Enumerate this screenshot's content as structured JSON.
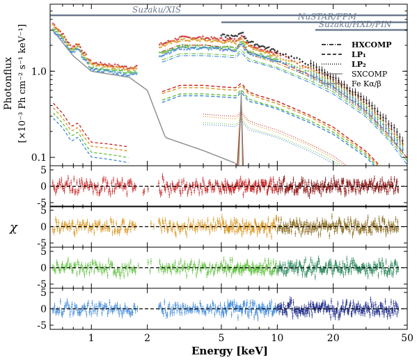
{
  "chart_data": {
    "type": "line",
    "xlabel": "Energy [keV]",
    "xscale": "log",
    "xlim": [
      0.6,
      50
    ],
    "xticks": [
      "1",
      "2",
      "5",
      "10",
      "20",
      "50"
    ],
    "top_panel": {
      "ylabel_line1": "Photonflux",
      "ylabel_line2": "[×10⁻³ Ph cm⁻² s⁻¹ keV⁻¹]",
      "yscale": "log",
      "ylim": [
        0.08,
        6.0
      ],
      "yticks": [
        "0.1",
        "1.0"
      ],
      "instruments": [
        {
          "label": "Suzaku/XIS",
          "emin": 0.6,
          "emax": 10
        },
        {
          "label": "NuSTAR/FPM",
          "emin": 5,
          "emax": 50
        },
        {
          "label": "Suzaku/HXD/PIN",
          "emin": 16,
          "emax": 50
        }
      ],
      "legend": {
        "placement": "right",
        "entries": [
          "HXCOMP",
          "LP₁",
          "LP₂",
          "SXCOMP",
          "Fe Kα/β"
        ]
      },
      "series": [
        {
          "name": "red",
          "color": "#c81e1e",
          "points": [
            [
              0.62,
              3.6
            ],
            [
              0.7,
              2.7
            ],
            [
              0.78,
              1.9
            ],
            [
              0.85,
              2.1
            ],
            [
              0.9,
              1.7
            ],
            [
              1.0,
              1.25
            ],
            [
              1.2,
              1.2
            ],
            [
              1.4,
              1.15
            ],
            [
              1.6,
              1.1
            ],
            [
              2.0,
              1.2
            ],
            [
              2.3,
              2.0
            ],
            [
              3.0,
              2.45
            ],
            [
              4.0,
              2.45
            ],
            [
              5.0,
              2.35
            ],
            [
              6.0,
              2.3
            ],
            [
              6.4,
              2.6
            ],
            [
              7.0,
              2.05
            ],
            [
              8.0,
              1.85
            ],
            [
              10,
              1.6
            ],
            [
              15,
              1.1
            ],
            [
              20,
              0.8
            ],
            [
              30,
              0.42
            ],
            [
              40,
              0.22
            ],
            [
              50,
              0.12
            ]
          ]
        },
        {
          "name": "orange",
          "color": "#d9941c",
          "points": [
            [
              0.62,
              3.4
            ],
            [
              0.7,
              2.55
            ],
            [
              0.78,
              1.8
            ],
            [
              0.85,
              2.0
            ],
            [
              0.9,
              1.6
            ],
            [
              1.0,
              1.2
            ],
            [
              1.2,
              1.15
            ],
            [
              1.4,
              1.1
            ],
            [
              1.6,
              1.05
            ],
            [
              2.0,
              1.15
            ],
            [
              2.3,
              1.9
            ],
            [
              3.0,
              2.3
            ],
            [
              4.0,
              2.3
            ],
            [
              5.0,
              2.2
            ],
            [
              6.0,
              2.15
            ],
            [
              6.4,
              2.45
            ],
            [
              7.0,
              1.95
            ],
            [
              8.0,
              1.75
            ],
            [
              10,
              1.5
            ],
            [
              15,
              1.05
            ],
            [
              20,
              0.75
            ],
            [
              30,
              0.4
            ],
            [
              40,
              0.21
            ],
            [
              50,
              0.12
            ]
          ]
        },
        {
          "name": "green",
          "color": "#5bbf3a",
          "points": [
            [
              0.62,
              3.2
            ],
            [
              0.7,
              2.4
            ],
            [
              0.78,
              1.7
            ],
            [
              0.85,
              1.9
            ],
            [
              0.9,
              1.5
            ],
            [
              1.0,
              1.1
            ],
            [
              1.2,
              1.05
            ],
            [
              1.4,
              1.0
            ],
            [
              1.6,
              0.95
            ],
            [
              2.0,
              1.05
            ],
            [
              2.3,
              1.6
            ],
            [
              3.0,
              1.95
            ],
            [
              4.0,
              1.95
            ],
            [
              5.0,
              1.9
            ],
            [
              6.0,
              1.85
            ],
            [
              6.4,
              2.2
            ],
            [
              7.0,
              1.7
            ],
            [
              8.0,
              1.55
            ],
            [
              10,
              1.35
            ],
            [
              15,
              0.95
            ],
            [
              20,
              0.7
            ],
            [
              30,
              0.38
            ],
            [
              40,
              0.2
            ],
            [
              50,
              0.11
            ]
          ]
        },
        {
          "name": "blue",
          "color": "#3a86d9",
          "points": [
            [
              0.62,
              3.0
            ],
            [
              0.7,
              2.3
            ],
            [
              0.78,
              1.6
            ],
            [
              0.85,
              1.8
            ],
            [
              0.9,
              1.45
            ],
            [
              1.0,
              1.05
            ],
            [
              1.2,
              1.0
            ],
            [
              1.4,
              0.95
            ],
            [
              1.6,
              0.9
            ],
            [
              2.0,
              1.0
            ],
            [
              2.3,
              1.5
            ],
            [
              3.0,
              1.85
            ],
            [
              4.0,
              1.85
            ],
            [
              5.0,
              1.8
            ],
            [
              6.0,
              1.75
            ],
            [
              6.4,
              2.05
            ],
            [
              7.0,
              1.6
            ],
            [
              8.0,
              1.5
            ],
            [
              10,
              1.3
            ],
            [
              15,
              0.9
            ],
            [
              20,
              0.66
            ],
            [
              30,
              0.36
            ],
            [
              40,
              0.19
            ],
            [
              50,
              0.1
            ]
          ]
        },
        {
          "name": "black",
          "color": "#111111",
          "points": [
            [
              5.0,
              2.6
            ],
            [
              6.0,
              2.5
            ],
            [
              6.4,
              2.9
            ],
            [
              7.0,
              2.2
            ],
            [
              8.0,
              2.0
            ],
            [
              10,
              1.7
            ],
            [
              15,
              1.2
            ],
            [
              20,
              0.85
            ],
            [
              30,
              0.45
            ],
            [
              40,
              0.25
            ],
            [
              50,
              0.14
            ]
          ]
        }
      ]
    },
    "residual_panels": [
      {
        "label": "χ",
        "ylim": [
          -5,
          5
        ],
        "yticks": [
          "5",
          "0",
          "-5"
        ],
        "colors": [
          "#c81e1e",
          "#8b1010"
        ]
      },
      {
        "label": "",
        "ylim": [
          -5,
          5
        ],
        "yticks": [
          "5",
          "0",
          "-5"
        ],
        "colors": [
          "#d9941c",
          "#8a6a1c"
        ]
      },
      {
        "label": "",
        "ylim": [
          -5,
          5
        ],
        "yticks": [
          "5",
          "0",
          "-5"
        ],
        "colors": [
          "#5bbf3a",
          "#2e8a5e"
        ]
      },
      {
        "label": "",
        "ylim": [
          -5,
          5
        ],
        "yticks": [
          "5",
          "0",
          "-5"
        ],
        "colors": [
          "#3a86d9",
          "#1c2a8a"
        ]
      }
    ]
  }
}
